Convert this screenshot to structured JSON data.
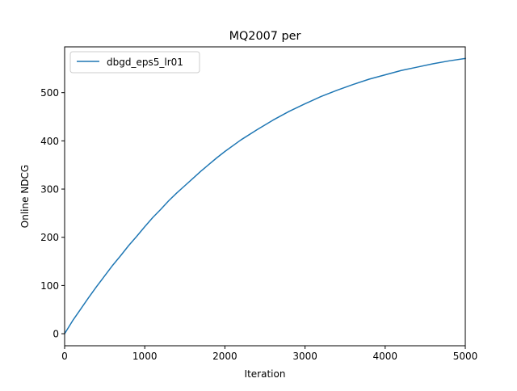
{
  "chart_data": {
    "type": "line",
    "title": "MQ2007 per",
    "xlabel": "Iteration",
    "ylabel": "Online NDCG",
    "xlim": [
      0,
      5000
    ],
    "ylim": [
      -25,
      595
    ],
    "xticks": [
      0,
      1000,
      2000,
      3000,
      4000,
      5000
    ],
    "yticks": [
      0,
      100,
      200,
      300,
      400,
      500
    ],
    "grid": false,
    "legend_position": "top-left",
    "series": [
      {
        "name": "dbgd_eps5_lr01",
        "color": "#1f77b4",
        "x": [
          0,
          100,
          200,
          300,
          400,
          500,
          600,
          700,
          800,
          900,
          1000,
          1100,
          1200,
          1300,
          1400,
          1500,
          1600,
          1700,
          1800,
          1900,
          2000,
          2200,
          2400,
          2600,
          2800,
          3000,
          3200,
          3400,
          3600,
          3800,
          4000,
          4200,
          4400,
          4600,
          4800,
          5000
        ],
        "y": [
          0,
          27,
          51,
          75,
          98,
          120,
          142,
          162,
          183,
          202,
          222,
          241,
          258,
          276,
          292,
          307,
          322,
          337,
          351,
          365,
          378,
          402,
          423,
          443,
          461,
          477,
          492,
          505,
          517,
          528,
          537,
          546,
          553,
          560,
          566,
          571
        ]
      }
    ]
  }
}
